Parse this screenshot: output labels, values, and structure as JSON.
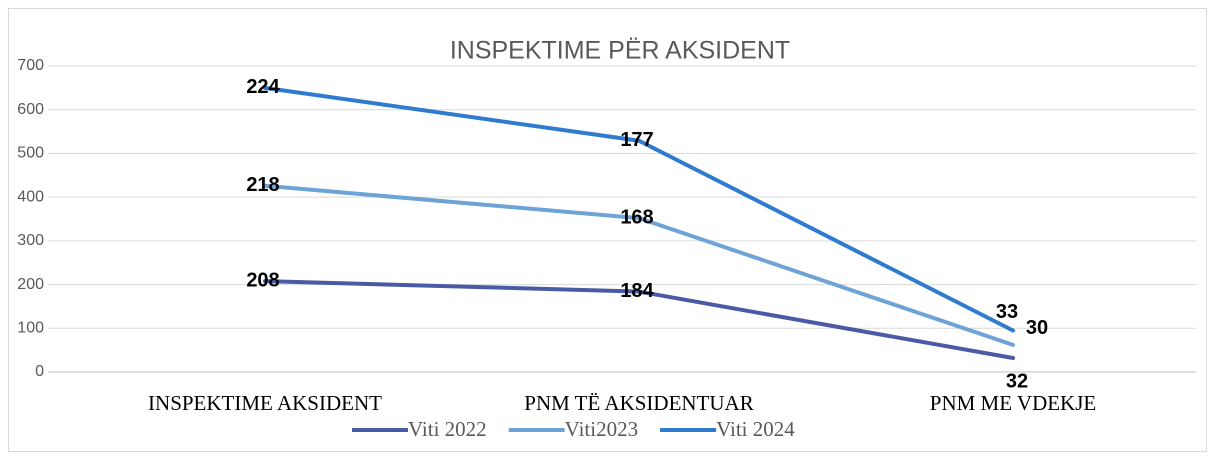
{
  "chart_data": {
    "type": "line",
    "stacked": true,
    "title": "INSPEKTIME PËR AKSIDENT",
    "categories": [
      "INSPEKTIME AKSIDENT",
      "PNM TË AKSIDENTUAR",
      "PNM ME VDEKJE"
    ],
    "series": [
      {
        "name": "Viti 2022",
        "color": "#4a5ba6",
        "values": [
          208,
          184,
          32
        ]
      },
      {
        "name": "Viti2023",
        "color": "#6ea3d6",
        "values": [
          218,
          168,
          30
        ]
      },
      {
        "name": "Viti 2024",
        "color": "#2e7bcf",
        "values": [
          224,
          177,
          33
        ]
      }
    ],
    "ylim": [
      0,
      700
    ],
    "yticks": [
      0,
      100,
      200,
      300,
      400,
      500,
      600,
      700
    ],
    "grid": true,
    "legend": "bottom"
  }
}
